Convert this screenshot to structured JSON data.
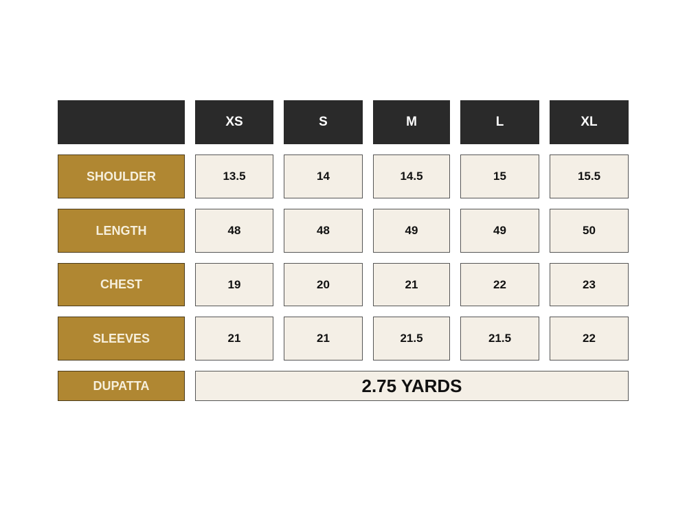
{
  "colors": {
    "header_bg": "#2a2a2a",
    "label_bg": "#b08732",
    "value_bg": "#f4efe6"
  },
  "sizes": [
    "XS",
    "S",
    "M",
    "L",
    "XL"
  ],
  "rows": [
    {
      "label": "SHOULDER",
      "values": [
        "13.5",
        "14",
        "14.5",
        "15",
        "15.5"
      ]
    },
    {
      "label": "LENGTH",
      "values": [
        "48",
        "48",
        "49",
        "49",
        "50"
      ]
    },
    {
      "label": "CHEST",
      "values": [
        "19",
        "20",
        "21",
        "22",
        "23"
      ]
    },
    {
      "label": "SLEEVES",
      "values": [
        "21",
        "21",
        "21.5",
        "21.5",
        "22"
      ]
    }
  ],
  "dupatta": {
    "label": "DUPATTA",
    "value": "2.75 YARDS"
  }
}
